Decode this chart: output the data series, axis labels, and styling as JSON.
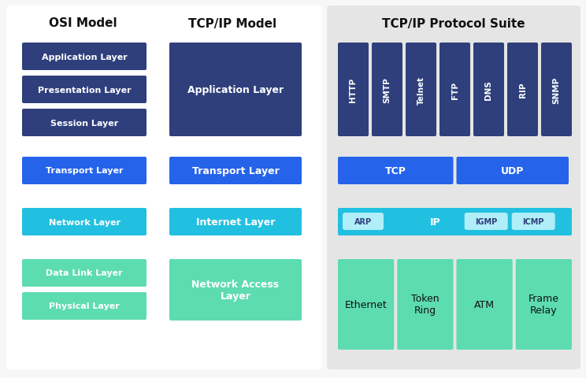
{
  "bg_color": "#f7f7f7",
  "left_bg": "#ffffff",
  "right_bg": "#e5e5e5",
  "title_osi": "OSI Model",
  "title_tcp": "TCP/IP Model",
  "title_suite": "TCP/IP Protocol Suite",
  "colors": {
    "dark_blue": "#2e3f7c",
    "blue": "#2563eb",
    "cyan": "#22c0e0",
    "teal": "#5ddcb0",
    "cyan_light": "#b0eef8"
  },
  "osi_layers": [
    {
      "label": "Application Layer",
      "color": "#2e3f7c"
    },
    {
      "label": "Presentation Layer",
      "color": "#2e3f7c"
    },
    {
      "label": "Session Layer",
      "color": "#2e3f7c"
    },
    {
      "label": "Transport Layer",
      "color": "#2563eb"
    },
    {
      "label": "Network Layer",
      "color": "#22c0e0"
    },
    {
      "label": "Data Link Layer",
      "color": "#5ddcb0"
    },
    {
      "label": "Physical Layer",
      "color": "#5ddcb0"
    }
  ],
  "tcp_layers": [
    {
      "label": "Application Layer",
      "color": "#2e3f7c",
      "multirow": true
    },
    {
      "label": "Transport Layer",
      "color": "#2563eb",
      "multirow": false
    },
    {
      "label": "Internet Layer",
      "color": "#22c0e0",
      "multirow": false
    },
    {
      "label": "Network Access\nLayer",
      "color": "#5ddcb0",
      "multirow": true
    }
  ],
  "suite_app_protocols": [
    "HTTP",
    "SMTP",
    "Telnet",
    "FTP",
    "DNS",
    "RIP",
    "SNMP"
  ],
  "suite_netaccess": [
    "Ethernet",
    "Token\nRing",
    "ATM",
    "Frame\nRelay"
  ]
}
